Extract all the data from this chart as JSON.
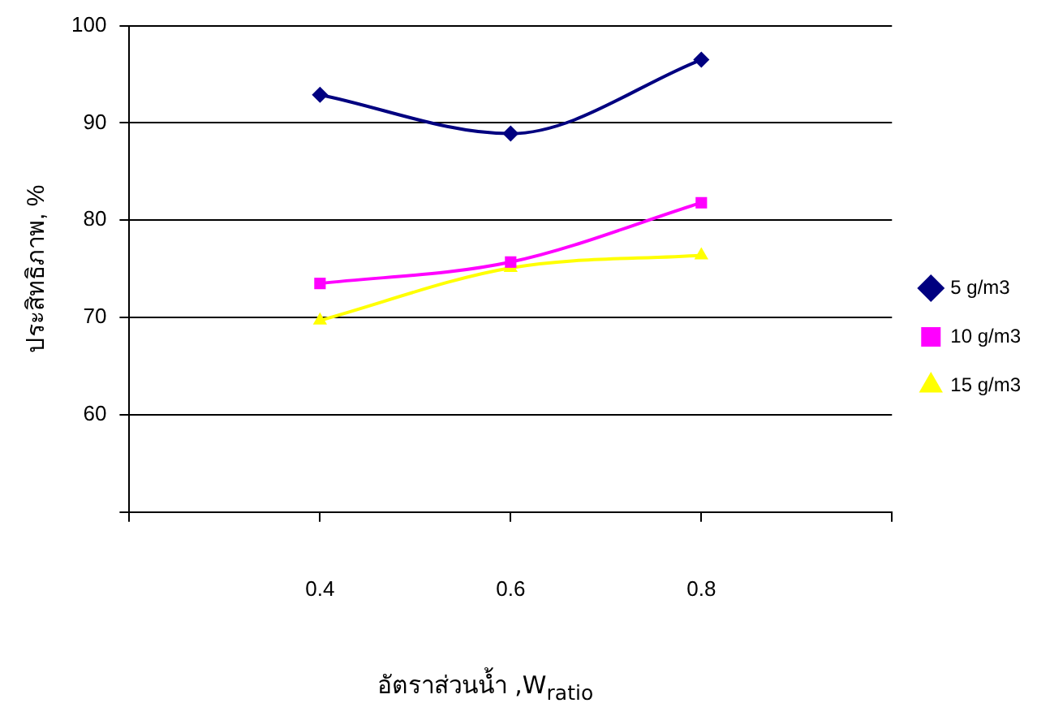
{
  "chart_data": {
    "type": "line",
    "xlabel": "อัตราส่วนน้ำ ,W$_{ratio}$",
    "ylabel": "ประสิทธิภาพ, %",
    "x": [
      0.4,
      0.6,
      0.8
    ],
    "xlim": [
      0.2,
      1.0
    ],
    "xticks": [
      {
        "value": 0.2,
        "label": null
      },
      0.4,
      0.6,
      0.8,
      {
        "value": 1.0,
        "label": null
      }
    ],
    "ylim": [
      50,
      100
    ],
    "yticks": [
      {
        "value": 50,
        "label": null
      },
      60,
      70,
      80,
      90,
      100
    ],
    "grid": "y",
    "legend": "right",
    "series": [
      {
        "name": "5 g/m3",
        "color": "#000080",
        "marker": "diamond",
        "values": [
          92.9,
          88.9,
          96.5
        ]
      },
      {
        "name": "10 g/m3",
        "color": "#ff00ff",
        "marker": "square",
        "values": [
          73.5,
          75.7,
          81.8
        ]
      },
      {
        "name": "15 g/m3",
        "color": "#ffff00",
        "marker": "triangle",
        "values": [
          69.7,
          75.1,
          76.4
        ]
      }
    ]
  }
}
